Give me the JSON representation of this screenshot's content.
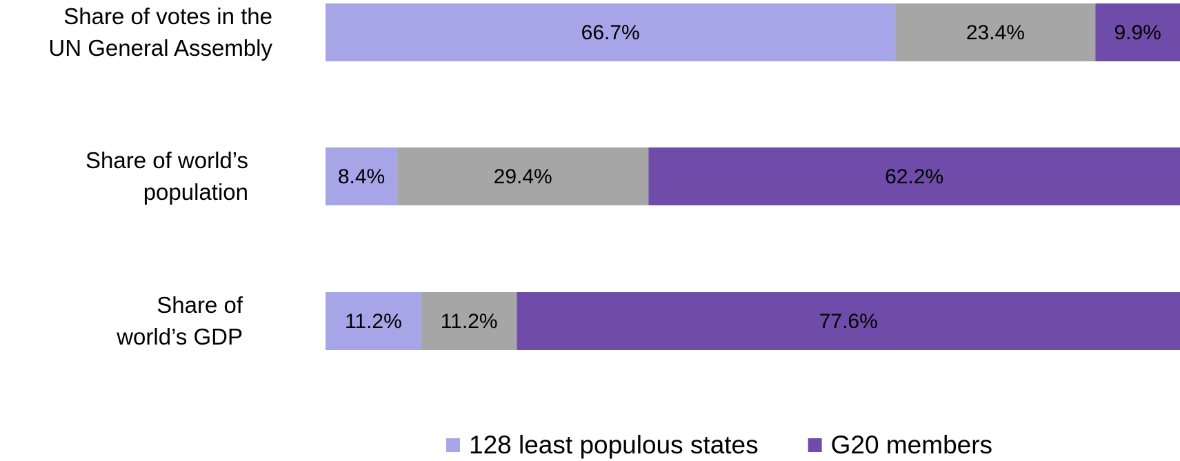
{
  "chart_data": {
    "type": "stacked-bar-horizontal",
    "categories": [
      "Share of votes in the\nUN General Assembly",
      "Share of world’s\npopulation",
      "Share of\nworld’s GDP"
    ],
    "series": [
      {
        "name": "128 least populous states",
        "color": "#a5a5e8",
        "values": [
          66.7,
          8.4,
          11.2
        ],
        "value_labels": [
          "66.7%",
          "8.4%",
          "11.2%"
        ]
      },
      {
        "color": "#a6a6a6",
        "values": [
          23.4,
          29.4,
          11.2
        ],
        "value_labels": [
          "23.4%",
          "29.4%",
          "11.2%"
        ]
      },
      {
        "name": "G20 members",
        "color": "#6f4ca9",
        "values": [
          9.9,
          62.2,
          77.6
        ],
        "value_labels": [
          "9.9%",
          "62.2%",
          "77.6%"
        ]
      }
    ],
    "xlim": [
      0,
      100
    ]
  }
}
